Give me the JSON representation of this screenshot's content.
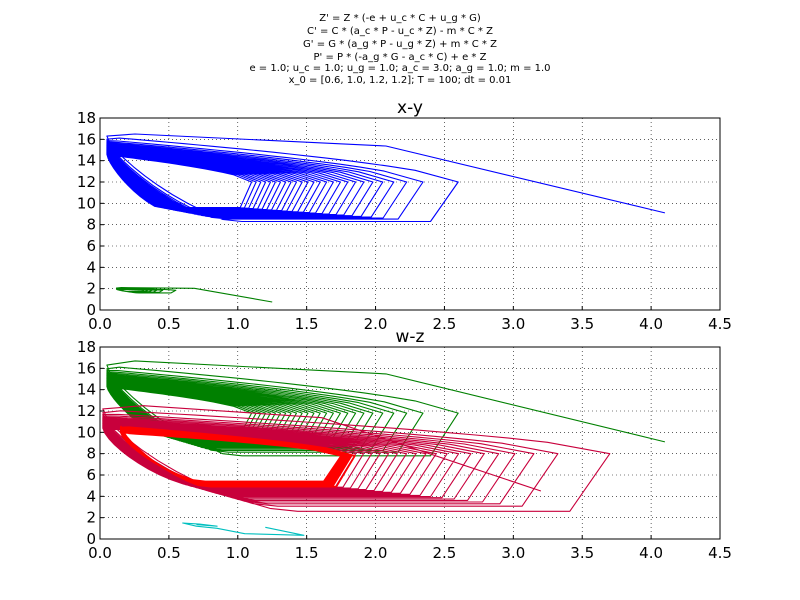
{
  "header": {
    "lines": [
      "Z' = Z * (-e + u_c * C + u_g * G)",
      "C' = C * (a_c * P - u_c * Z) - m * C * Z",
      "G' = G * (a_g * P - u_g * Z) + m * C * Z",
      "P' = P * (-a_g * G - a_c * C) + e * Z",
      "e = 1.0; u_c = 1.0; u_g = 1.0; a_c = 3.0; a_g = 1.0; m = 1.0",
      "x_0 = [0.6, 1.0, 1.2, 1.2]; T = 100; dt = 0.01"
    ]
  },
  "chart_data": [
    {
      "type": "line",
      "title": "x-y",
      "xlabel": "",
      "ylabel": "",
      "xlim": [
        0,
        4.5
      ],
      "ylim": [
        0,
        18
      ],
      "xticks": [
        "0.0",
        "0.5",
        "1.0",
        "1.5",
        "2.0",
        "2.5",
        "3.0",
        "3.5",
        "4.0",
        "4.5"
      ],
      "yticks": [
        "0",
        "2",
        "4",
        "6",
        "8",
        "10",
        "12",
        "14",
        "16",
        "18"
      ],
      "grid": true,
      "series": [
        {
          "color": "#0000ff",
          "kind": "spiral",
          "spiral": {
            "start": [
              4.1,
              9.1
            ],
            "peak_y": 16.5,
            "left_x": 0.05,
            "mid_y": 12.0,
            "right_outer": 2.6,
            "right_inner": 1.1,
            "top_outer": 16.3,
            "top_inner": 14.6,
            "bottom_outer": 8.3,
            "bottom_inner": 9.6,
            "turns": 26
          }
        },
        {
          "color": "#008000",
          "kind": "spiral",
          "spiral": {
            "start": [
              1.25,
              0.75
            ],
            "peak_y": 2.1,
            "left_x": 0.12,
            "mid_y": 1.85,
            "right_outer": 0.55,
            "right_inner": 0.32,
            "top_outer": 2.05,
            "top_inner": 1.95,
            "bottom_outer": 1.6,
            "bottom_inner": 1.75,
            "turns": 6
          }
        }
      ]
    },
    {
      "type": "line",
      "title": "w-z",
      "xlabel": "",
      "ylabel": "",
      "xlim": [
        0,
        4.5
      ],
      "ylim": [
        0,
        18
      ],
      "xticks": [
        "0.0",
        "0.5",
        "1.0",
        "1.5",
        "2.0",
        "2.5",
        "3.0",
        "3.5",
        "4.0",
        "4.5"
      ],
      "yticks": [
        "0",
        "2",
        "4",
        "6",
        "8",
        "10",
        "12",
        "14",
        "16",
        "18"
      ],
      "grid": true,
      "series": [
        {
          "color": "#008000",
          "kind": "spiral",
          "spiral": {
            "start": [
              4.1,
              9.1
            ],
            "peak_y": 16.7,
            "left_x": 0.05,
            "mid_y": 11.8,
            "right_outer": 2.6,
            "right_inner": 1.1,
            "top_outer": 16.3,
            "top_inner": 14.3,
            "bottom_outer": 7.8,
            "bottom_inner": 9.8,
            "turns": 26
          }
        },
        {
          "color": "#c8003c",
          "kind": "spiral",
          "spiral": {
            "start": [
              3.2,
              4.5
            ],
            "peak_y": 12.5,
            "left_x": 0.02,
            "mid_y": 8.0,
            "right_outer": 3.7,
            "right_inner": 1.8,
            "top_outer": 12.2,
            "top_inner": 10.4,
            "bottom_outer": 2.6,
            "bottom_inner": 5.0,
            "turns": 20
          }
        },
        {
          "color": "#ff0000",
          "kind": "limit-cycle",
          "spiral": {
            "left_x": 0.15,
            "mid_y": 7.8,
            "right_outer": 1.85,
            "right_inner": 1.75,
            "top_outer": 10.6,
            "top_inner": 10.0,
            "bottom_outer": 4.9,
            "bottom_inner": 5.4,
            "turns": 14
          }
        },
        {
          "color": "#00bfbf",
          "kind": "polyline",
          "points": [
            [
              1.2,
              1.1
            ],
            [
              1.48,
              0.35
            ],
            [
              1.05,
              0.5
            ],
            [
              0.85,
              1.0
            ],
            [
              0.7,
              1.2
            ],
            [
              0.6,
              1.5
            ],
            [
              0.72,
              1.4
            ],
            [
              0.85,
              1.2
            ],
            [
              0.7,
              1.35
            ]
          ]
        }
      ]
    }
  ]
}
